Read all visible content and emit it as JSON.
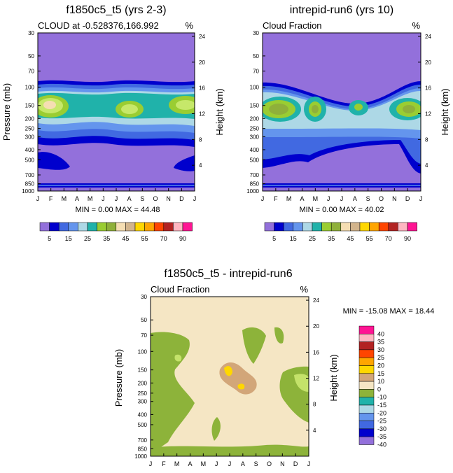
{
  "colors": {
    "outline": "#000000",
    "cbar": [
      "#9370DB",
      "#0000CD",
      "#4169E1",
      "#6495ED",
      "#ADD8E6",
      "#20B2AA",
      "#9ACD32",
      "#8FB03A",
      "#F5DEB3",
      "#D2B48C",
      "#FFD700",
      "#FFA500",
      "#FF4500",
      "#B22222",
      "#FFB6C1",
      "#FF1493"
    ],
    "diffbar": [
      "#9370DB",
      "#0000CD",
      "#4169E1",
      "#6495ED",
      "#ADD8E6",
      "#20B2AA",
      "#8DB33A",
      "#F5E6C4",
      "#D2A679",
      "#FFD700",
      "#FFA500",
      "#FF4500",
      "#B22222",
      "#FFB6C1",
      "#FF1493"
    ]
  },
  "chart_data": [
    {
      "type": "heatmap",
      "title": "f1850c5_t5 (yrs 2-3)",
      "subtitle_left": "CLOUD at -0.528376,166.992",
      "subtitle_right": "%",
      "ylabel": "Pressure (mb)",
      "ylabel_right": "Height (km)",
      "x_ticks": [
        "J",
        "F",
        "M",
        "A",
        "M",
        "J",
        "J",
        "A",
        "S",
        "O",
        "N",
        "D",
        "J"
      ],
      "y_ticks": [
        "30",
        "50",
        "70",
        "100",
        "150",
        "200",
        "250",
        "300",
        "400",
        "500",
        "700",
        "850",
        "1000"
      ],
      "y_ticks_right": [
        "24",
        "20",
        "16",
        "12",
        "8",
        "4"
      ],
      "min": "0.00",
      "max": "44.48",
      "stats_text": "MIN =  0.00 MAX = 44.48",
      "colorbar_labels": [
        "5",
        "15",
        "25",
        "35",
        "45",
        "55",
        "70",
        "90"
      ]
    },
    {
      "type": "heatmap",
      "title": "intrepid-run6 (yrs 10)",
      "subtitle_left": "Cloud Fraction",
      "subtitle_right": "%",
      "ylabel": "Pressure (mb)",
      "ylabel_right": "Height (km)",
      "x_ticks": [
        "J",
        "F",
        "M",
        "A",
        "M",
        "J",
        "J",
        "A",
        "S",
        "O",
        "N",
        "D",
        "J"
      ],
      "y_ticks": [
        "30",
        "50",
        "70",
        "100",
        "150",
        "200",
        "250",
        "300",
        "400",
        "500",
        "700",
        "850",
        "1000"
      ],
      "y_ticks_right": [
        "24",
        "20",
        "16",
        "12",
        "8",
        "4"
      ],
      "min": "0.00",
      "max": "40.02",
      "stats_text": "MIN =  0.00 MAX = 40.02",
      "colorbar_labels": [
        "5",
        "15",
        "25",
        "35",
        "45",
        "55",
        "70",
        "90"
      ]
    },
    {
      "type": "heatmap",
      "title": "f1850c5_t5 - intrepid-run6",
      "subtitle_left": "Cloud Fraction",
      "subtitle_right": "%",
      "ylabel": "Pressure (mb)",
      "ylabel_right": "Height (km)",
      "x_ticks": [
        "J",
        "F",
        "M",
        "A",
        "M",
        "J",
        "J",
        "A",
        "S",
        "O",
        "N",
        "D",
        "J"
      ],
      "y_ticks": [
        "30",
        "50",
        "70",
        "100",
        "150",
        "200",
        "250",
        "300",
        "400",
        "500",
        "700",
        "850",
        "1000"
      ],
      "y_ticks_right": [
        "24",
        "20",
        "16",
        "12",
        "8",
        "4"
      ],
      "min": "-15.08",
      "max": "18.44",
      "stats_text": "MIN = -15.08 MAX =  18.44",
      "colorbar_labels": [
        "40",
        "35",
        "30",
        "25",
        "20",
        "15",
        "10",
        "0",
        "-10",
        "-15",
        "-20",
        "-25",
        "-30",
        "-35",
        "-40"
      ]
    }
  ]
}
